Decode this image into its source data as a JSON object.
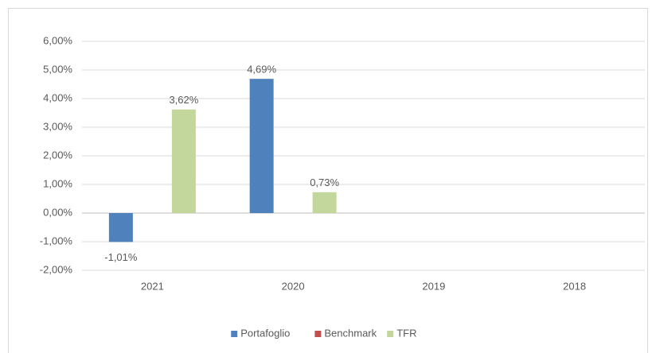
{
  "chart_data": {
    "type": "bar",
    "categories": [
      "2021",
      "2020",
      "2019",
      "2018"
    ],
    "series": [
      {
        "name": "Portafoglio",
        "color": "#4f81bd",
        "values": [
          -1.01,
          4.69,
          null,
          null
        ],
        "value_labels": [
          "-1,01%",
          "4,69%",
          null,
          null
        ]
      },
      {
        "name": "Benchmark",
        "color": "#c0504d",
        "values": [
          null,
          null,
          null,
          null
        ]
      },
      {
        "name": "TFR",
        "color": "#c3d69b",
        "values": [
          3.62,
          0.73,
          null,
          null
        ],
        "value_labels": [
          "3,62%",
          "0,73%",
          null,
          null
        ]
      }
    ],
    "ylim": [
      -2,
      6
    ],
    "yticks": [
      {
        "value": -2,
        "label": "-2,00%"
      },
      {
        "value": -1,
        "label": "-1,00%"
      },
      {
        "value": 0,
        "label": "0,00%"
      },
      {
        "value": 1,
        "label": "1,00%"
      },
      {
        "value": 2,
        "label": "2,00%"
      },
      {
        "value": 3,
        "label": "3,00%"
      },
      {
        "value": 4,
        "label": "4,00%"
      },
      {
        "value": 5,
        "label": "5,00%"
      },
      {
        "value": 6,
        "label": "6,00%"
      }
    ],
    "grid": true,
    "legend": "bottom"
  }
}
